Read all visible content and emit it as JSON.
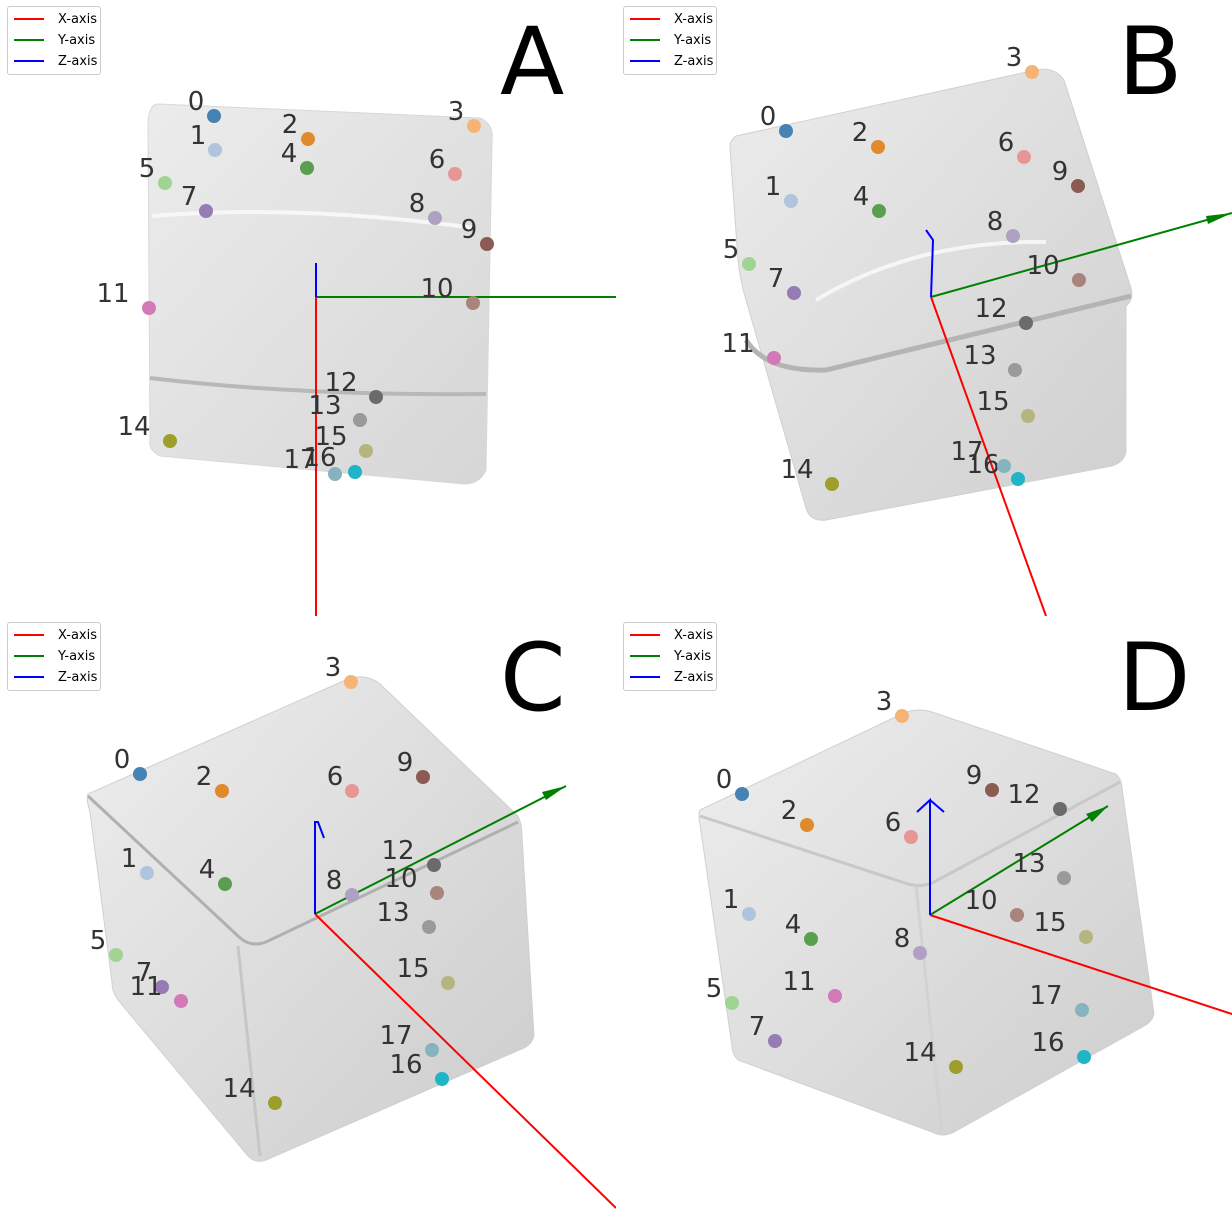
{
  "legend": [
    {
      "label": "X-axis",
      "color": "#ff0000"
    },
    {
      "label": "Y-axis",
      "color": "#008000"
    },
    {
      "label": "Z-axis",
      "color": "#0000ff"
    }
  ],
  "point_colors": [
    "#4682b4",
    "#b0c4de",
    "#e08a2c",
    "#f5b476",
    "#5a9e50",
    "#a1d392",
    "#e89595",
    "#957cb4",
    "#b0a1c4",
    "#8b5a52",
    "#a8847b",
    "#d17ab7",
    "#6b6b6b",
    "#9a9a9a",
    "#9e9e2b",
    "#b5b57f",
    "#1fb5c7",
    "#86b3bd"
  ],
  "panels": [
    {
      "letter": "A",
      "points": [
        "0",
        "1",
        "2",
        "3",
        "4",
        "5",
        "6",
        "7",
        "8",
        "9",
        "10",
        "11",
        "12",
        "13",
        "14",
        "15",
        "16",
        "17"
      ]
    },
    {
      "letter": "B",
      "points": [
        "0",
        "1",
        "2",
        "3",
        "4",
        "5",
        "6",
        "7",
        "8",
        "9",
        "10",
        "11",
        "12",
        "13",
        "14",
        "15",
        "16",
        "17"
      ]
    },
    {
      "letter": "C",
      "points": [
        "0",
        "1",
        "2",
        "3",
        "4",
        "5",
        "6",
        "7",
        "8",
        "9",
        "10",
        "11",
        "12",
        "13",
        "14",
        "15",
        "16",
        "17"
      ]
    },
    {
      "letter": "D",
      "points": [
        "0",
        "1",
        "2",
        "3",
        "4",
        "5",
        "6",
        "7",
        "8",
        "9",
        "10",
        "11",
        "12",
        "13",
        "14",
        "15",
        "16",
        "17"
      ]
    }
  ]
}
